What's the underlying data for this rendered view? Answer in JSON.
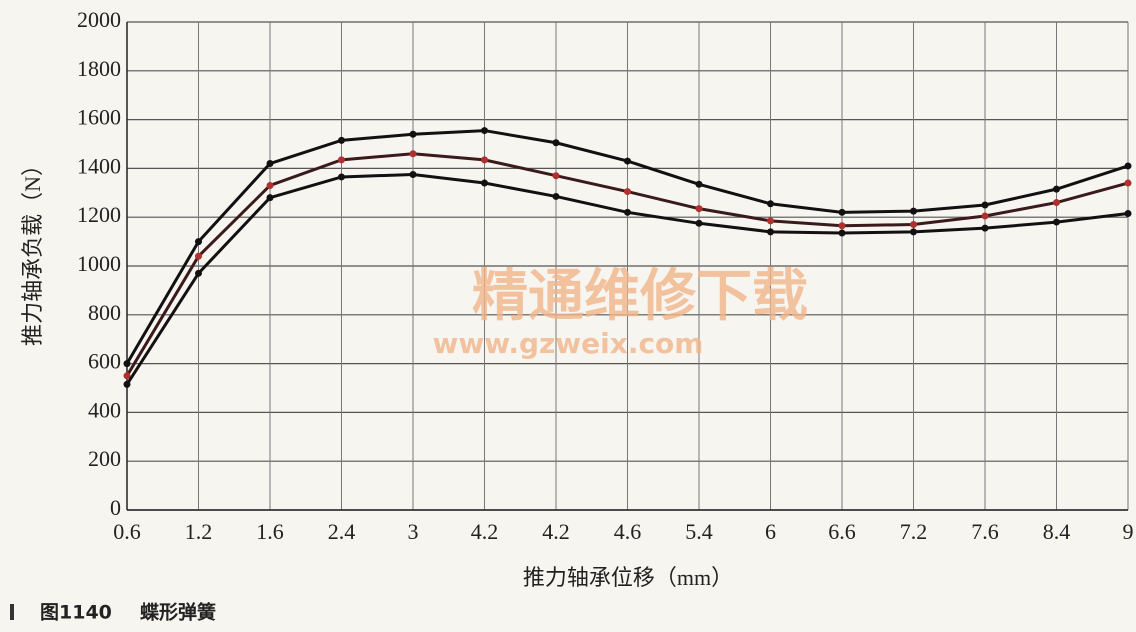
{
  "chart_data": {
    "type": "line",
    "x_label": "推力轴承位移（mm）",
    "y_label": "推力轴承负载（N）",
    "categories": [
      "0.6",
      "1.2",
      "1.6",
      "2.4",
      "3",
      "4.2",
      "4.2",
      "4.6",
      "5.4",
      "6",
      "6.6",
      "7.2",
      "7.6",
      "8.4",
      "9"
    ],
    "series": [
      {
        "color": "#111111",
        "values": [
          600,
          1100,
          1420,
          1515,
          1540,
          1555,
          1505,
          1430,
          1335,
          1255,
          1220,
          1225,
          1250,
          1315,
          1410
        ]
      },
      {
        "color": "#b03030",
        "values": [
          550,
          1040,
          1330,
          1435,
          1460,
          1435,
          1370,
          1305,
          1235,
          1185,
          1165,
          1170,
          1205,
          1260,
          1340
        ]
      },
      {
        "color": "#111111",
        "values": [
          515,
          970,
          1280,
          1365,
          1375,
          1340,
          1285,
          1220,
          1175,
          1140,
          1135,
          1140,
          1155,
          1180,
          1215
        ]
      }
    ],
    "ylim": [
      0,
      2000
    ],
    "yticks": [
      0,
      200,
      400,
      600,
      800,
      1000,
      1200,
      1400,
      1600,
      1800,
      2000
    ],
    "grid": true,
    "watermark": [
      "精通维修下载",
      "www.gzweix.com"
    ],
    "caption": [
      "图1140",
      "蝶形弹簧"
    ]
  }
}
